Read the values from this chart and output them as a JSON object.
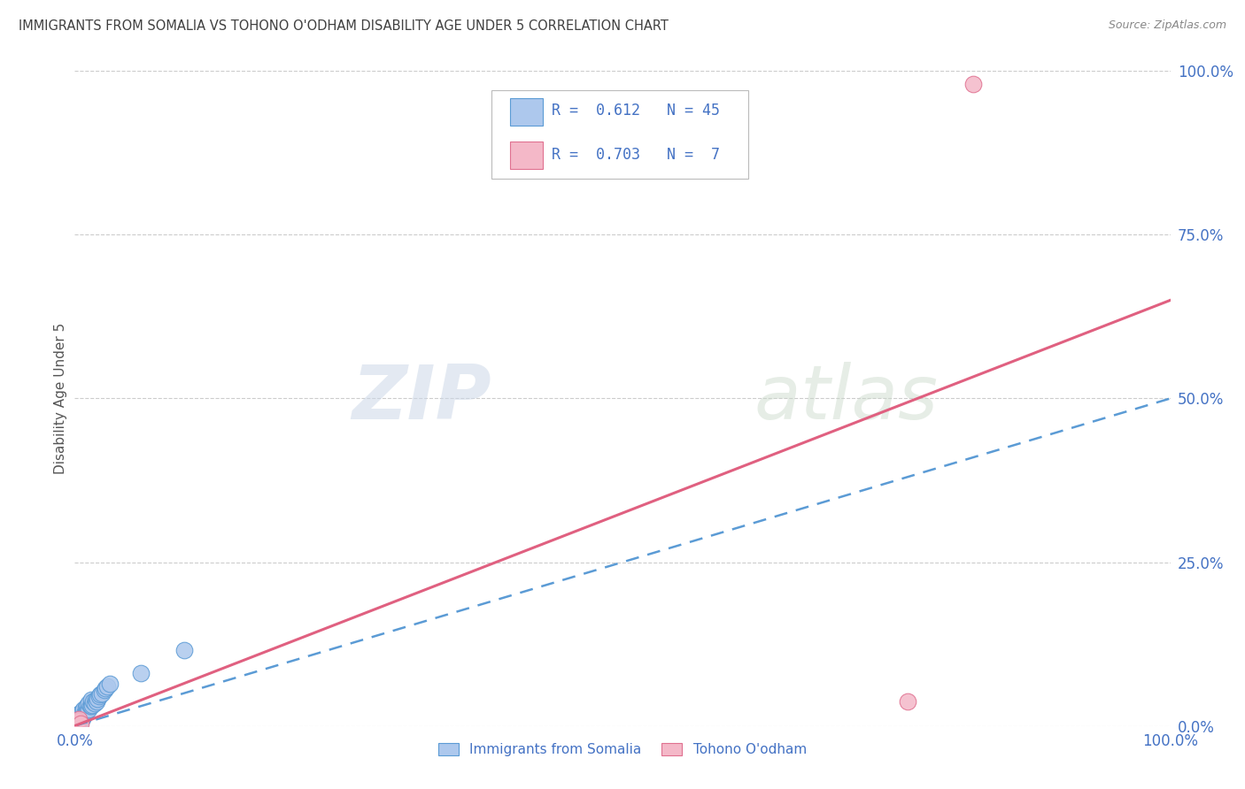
{
  "title": "IMMIGRANTS FROM SOMALIA VS TOHONO O'ODHAM DISABILITY AGE UNDER 5 CORRELATION CHART",
  "source": "Source: ZipAtlas.com",
  "ylabel": "Disability Age Under 5",
  "xlim": [
    0,
    1.0
  ],
  "ylim": [
    0,
    1.0
  ],
  "xtick_positions": [
    0.0,
    0.25,
    0.5,
    0.75,
    1.0
  ],
  "xtick_labels": [
    "0.0%",
    "",
    "",
    "",
    "100.0%"
  ],
  "ytick_positions": [
    0.0,
    0.25,
    0.5,
    0.75,
    1.0
  ],
  "right_ytick_labels": [
    "0.0%",
    "25.0%",
    "50.0%",
    "75.0%",
    "100.0%"
  ],
  "somalia_color": "#adc8ed",
  "somalia_edge_color": "#5b9bd5",
  "tohono_color": "#f4b8c8",
  "tohono_edge_color": "#e07090",
  "somalia_R": 0.612,
  "somalia_N": 45,
  "tohono_R": 0.703,
  "tohono_N": 7,
  "somalia_points_x": [
    0.001,
    0.002,
    0.002,
    0.003,
    0.003,
    0.004,
    0.004,
    0.005,
    0.005,
    0.006,
    0.006,
    0.006,
    0.007,
    0.007,
    0.008,
    0.008,
    0.009,
    0.01,
    0.01,
    0.011,
    0.011,
    0.012,
    0.013,
    0.013,
    0.014,
    0.015,
    0.015,
    0.016,
    0.017,
    0.018,
    0.019,
    0.02,
    0.021,
    0.022,
    0.023,
    0.025,
    0.027,
    0.028,
    0.03,
    0.032,
    0.001,
    0.002,
    0.003,
    0.06,
    0.1
  ],
  "somalia_points_y": [
    0.005,
    0.008,
    0.012,
    0.007,
    0.015,
    0.01,
    0.018,
    0.008,
    0.02,
    0.01,
    0.015,
    0.02,
    0.012,
    0.022,
    0.015,
    0.025,
    0.018,
    0.02,
    0.028,
    0.022,
    0.03,
    0.025,
    0.025,
    0.035,
    0.03,
    0.03,
    0.04,
    0.032,
    0.038,
    0.035,
    0.04,
    0.038,
    0.042,
    0.045,
    0.048,
    0.05,
    0.055,
    0.058,
    0.06,
    0.065,
    0.003,
    0.005,
    0.008,
    0.08,
    0.115
  ],
  "tohono_points_x": [
    0.001,
    0.002,
    0.003,
    0.004,
    0.005,
    0.82,
    0.76
  ],
  "tohono_points_y": [
    0.002,
    0.005,
    0.008,
    0.01,
    0.003,
    0.98,
    0.038
  ],
  "somalia_line_slope": 0.5,
  "somalia_line_intercept": 0.0,
  "tohono_line_slope": 0.65,
  "tohono_line_intercept": 0.0,
  "watermark_zip": "ZIP",
  "watermark_atlas": "atlas",
  "legend_somalia_label": "Immigrants from Somalia",
  "legend_tohono_label": "Tohono O'odham",
  "background_color": "#ffffff",
  "grid_color": "#cccccc",
  "title_color": "#404040",
  "axis_label_color": "#4472c4",
  "text_color": "#888888"
}
